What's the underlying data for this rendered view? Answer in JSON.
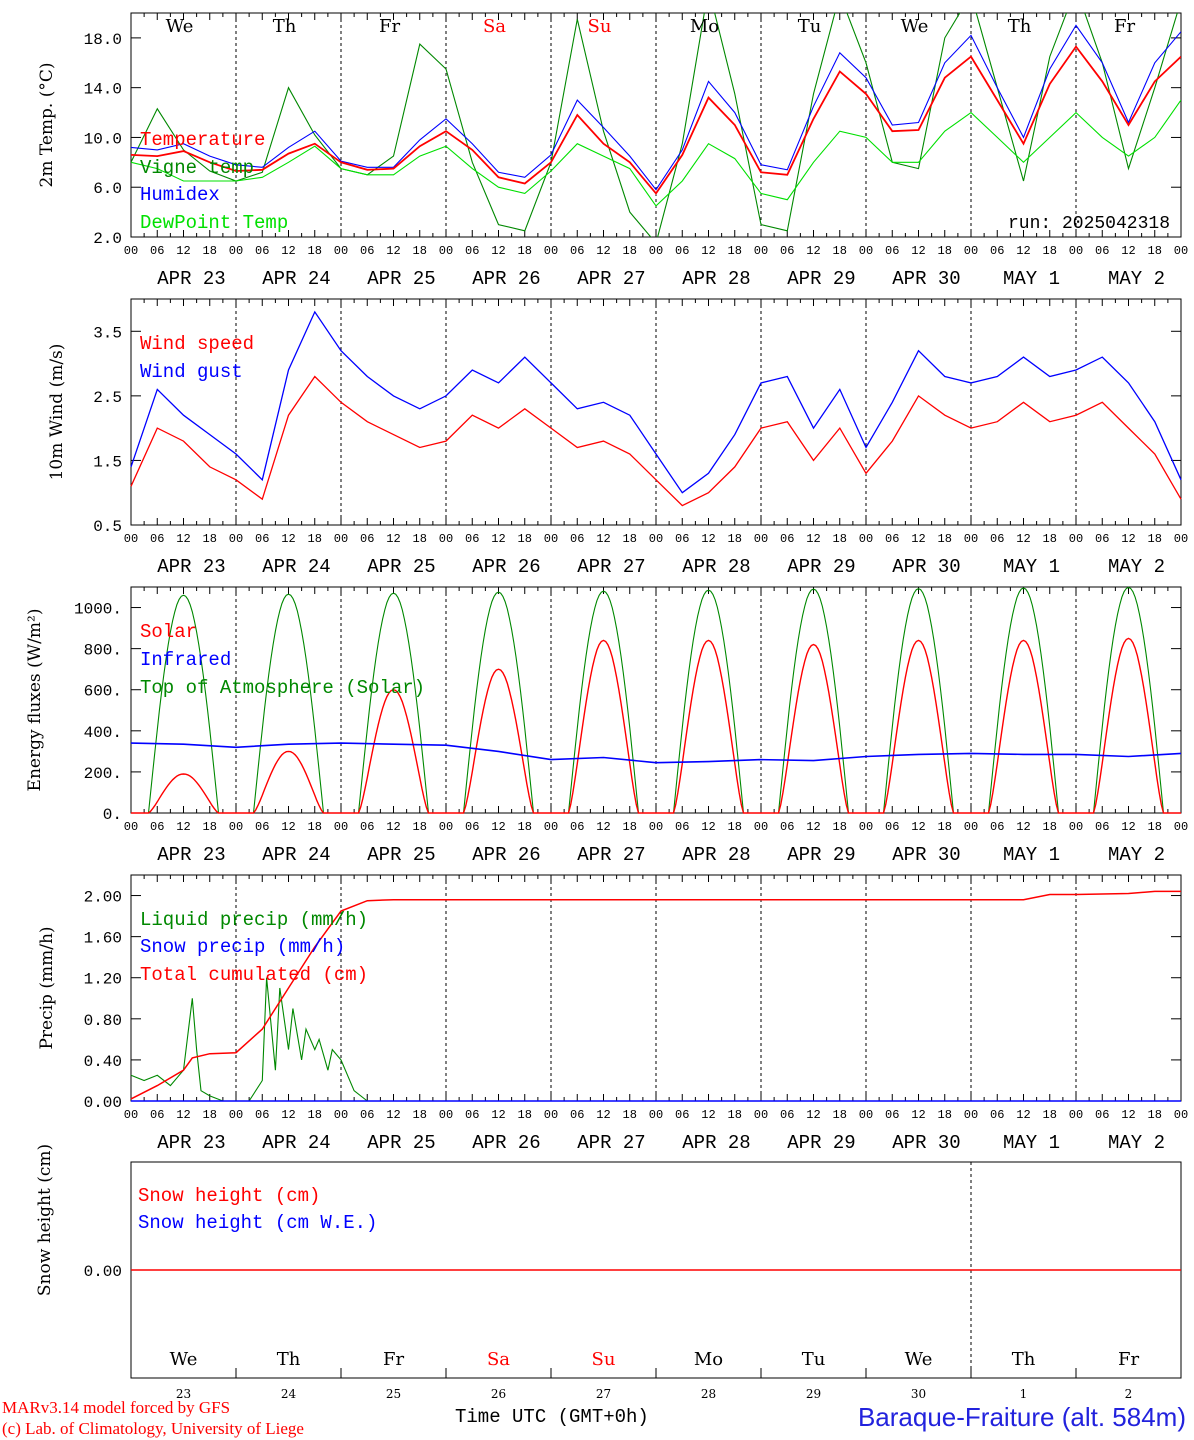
{
  "days_top": [
    {
      "label": "We",
      "color": "#000000"
    },
    {
      "label": "Th",
      "color": "#000000"
    },
    {
      "label": "Fr",
      "color": "#000000"
    },
    {
      "label": "Sa",
      "color": "#ff0000"
    },
    {
      "label": "Su",
      "color": "#ff0000"
    },
    {
      "label": "Mo",
      "color": "#000000"
    },
    {
      "label": "Tu",
      "color": "#000000"
    },
    {
      "label": "We",
      "color": "#000000"
    },
    {
      "label": "Th",
      "color": "#000000"
    },
    {
      "label": "Fr",
      "color": "#000000"
    }
  ],
  "date_labels": [
    "APR 23",
    "APR 24",
    "APR 25",
    "APR 26",
    "APR 27",
    "APR 28",
    "APR 29",
    "APR 30",
    "MAY  1",
    "MAY  2"
  ],
  "hour_ticks": [
    "00",
    "06",
    "12",
    "18"
  ],
  "day_numbers": [
    "23",
    "24",
    "25",
    "26",
    "27",
    "28",
    "29",
    "30",
    "1",
    "2"
  ],
  "colors": {
    "red": "#ff0000",
    "green": "#008800",
    "blue": "#0000ff",
    "lightgreen": "#00e000",
    "title_blue": "#2222dd"
  },
  "footer": {
    "model": "MARv3.14 model forced by GFS",
    "lab": "(c) Lab. of Climatology, University of Liege",
    "time_label": "Time UTC (GMT+0h)",
    "station": "Baraque-Fraiture (alt. 584m)"
  },
  "chart_data": [
    {
      "type": "line",
      "ylabel": "2m Temp. (°C)",
      "ylim": [
        2,
        20
      ],
      "yticks": [
        "2.0",
        "6.0",
        "10.0",
        "14.0",
        "18.0"
      ],
      "run_label": "run: 2025042318",
      "x_hours": [
        0,
        6,
        12,
        18,
        24,
        30,
        36,
        42,
        48,
        54,
        60,
        66,
        72,
        78,
        84,
        90,
        96,
        102,
        108,
        114,
        120,
        126,
        132,
        138,
        144,
        150,
        156,
        162,
        168,
        174,
        180,
        186,
        192,
        198,
        204,
        210,
        216,
        222,
        228,
        234,
        240
      ],
      "series": [
        {
          "name": "Temperature",
          "color": "#ff0000",
          "values": [
            8.6,
            8.5,
            8.9,
            8.0,
            7.3,
            7.4,
            8.7,
            9.5,
            8.0,
            7.4,
            7.5,
            9.3,
            10.5,
            9.0,
            6.8,
            6.3,
            8.0,
            11.8,
            9.5,
            8.0,
            5.5,
            8.6,
            13.2,
            11.0,
            7.2,
            7.0,
            11.5,
            15.3,
            13.5,
            10.5,
            10.6,
            14.8,
            16.5,
            13.0,
            9.5,
            14.3,
            17.3,
            14.5,
            11.0,
            14.5,
            16.5
          ]
        },
        {
          "name": "Vigne temp",
          "color": "#008800",
          "values": [
            8.0,
            12.3,
            9.0,
            7.3,
            6.5,
            7.2,
            14.0,
            10.2,
            7.5,
            7.0,
            8.5,
            17.5,
            15.5,
            8.0,
            3.0,
            2.5,
            8.0,
            19.5,
            10.5,
            4.0,
            1.5,
            9.5,
            22.0,
            13.5,
            3.0,
            2.5,
            13.5,
            21.5,
            16.0,
            8.0,
            7.5,
            18.0,
            21.5,
            14.0,
            6.5,
            16.5,
            22.0,
            16.0,
            7.5,
            14.0,
            21.0
          ]
        },
        {
          "name": "Humidex",
          "color": "#0000ff",
          "values": [
            9.2,
            9.0,
            9.5,
            8.5,
            7.8,
            7.6,
            9.2,
            10.5,
            8.1,
            7.6,
            7.6,
            9.8,
            11.5,
            9.5,
            7.2,
            6.8,
            8.6,
            13.0,
            10.8,
            8.5,
            5.8,
            9.0,
            14.5,
            12.0,
            7.8,
            7.4,
            12.5,
            16.8,
            14.8,
            11.0,
            11.2,
            16.0,
            18.2,
            14.0,
            10.0,
            15.5,
            19.0,
            16.0,
            11.2,
            16.0,
            18.5
          ]
        },
        {
          "name": "DewPoint Temp",
          "color": "#00e000",
          "values": [
            8.0,
            7.5,
            6.5,
            6.5,
            6.5,
            6.8,
            8.0,
            9.3,
            7.5,
            7.0,
            7.0,
            8.5,
            9.3,
            7.5,
            6.0,
            5.5,
            7.3,
            9.5,
            8.5,
            7.5,
            4.5,
            6.5,
            9.5,
            8.3,
            5.5,
            5.0,
            8.0,
            10.5,
            10.0,
            8.0,
            8.0,
            10.5,
            12.0,
            10.0,
            8.0,
            10.0,
            12.0,
            10.0,
            8.5,
            10.0,
            13.0
          ]
        }
      ]
    },
    {
      "type": "line",
      "ylabel": "10m Wind (m/s)",
      "ylim": [
        0.5,
        4.0
      ],
      "yticks": [
        "0.5",
        "1.5",
        "2.5",
        "3.5"
      ],
      "x_hours": [
        0,
        6,
        12,
        18,
        24,
        30,
        36,
        42,
        48,
        54,
        60,
        66,
        72,
        78,
        84,
        90,
        96,
        102,
        108,
        114,
        120,
        126,
        132,
        138,
        144,
        150,
        156,
        162,
        168,
        174,
        180,
        186,
        192,
        198,
        204,
        210,
        216,
        222,
        228,
        234,
        240
      ],
      "series": [
        {
          "name": "Wind speed",
          "color": "#ff0000",
          "values": [
            1.1,
            2.0,
            1.8,
            1.4,
            1.2,
            0.9,
            2.2,
            2.8,
            2.4,
            2.1,
            1.9,
            1.7,
            1.8,
            2.2,
            2.0,
            2.3,
            2.0,
            1.7,
            1.8,
            1.6,
            1.2,
            0.8,
            1.0,
            1.4,
            2.0,
            2.1,
            1.5,
            2.0,
            1.3,
            1.8,
            2.5,
            2.2,
            2.0,
            2.1,
            2.4,
            2.1,
            2.2,
            2.4,
            2.0,
            1.6,
            0.9
          ]
        },
        {
          "name": "Wind gust",
          "color": "#0000ff",
          "values": [
            1.4,
            2.6,
            2.2,
            1.9,
            1.6,
            1.2,
            2.9,
            3.8,
            3.2,
            2.8,
            2.5,
            2.3,
            2.5,
            2.9,
            2.7,
            3.1,
            2.7,
            2.3,
            2.4,
            2.2,
            1.6,
            1.0,
            1.3,
            1.9,
            2.7,
            2.8,
            2.0,
            2.6,
            1.7,
            2.4,
            3.2,
            2.8,
            2.7,
            2.8,
            3.1,
            2.8,
            2.9,
            3.1,
            2.7,
            2.1,
            1.2
          ]
        }
      ]
    },
    {
      "type": "line",
      "ylabel": "Energy fluxes (W/m²)",
      "ylim": [
        0,
        1100
      ],
      "yticks": [
        "0.",
        "200.",
        "400.",
        "600.",
        "800.",
        "1000."
      ],
      "days": 10,
      "series": [
        {
          "name": "Solar",
          "color": "#ff0000",
          "daily_peaks": [
            190,
            300,
            600,
            700,
            840,
            840,
            820,
            840,
            840,
            850
          ]
        },
        {
          "name": "Infrared",
          "color": "#0000ff",
          "x_hours": [
            0,
            12,
            24,
            36,
            48,
            60,
            72,
            84,
            96,
            108,
            120,
            132,
            144,
            156,
            168,
            180,
            192,
            204,
            216,
            228,
            240
          ],
          "values": [
            340,
            335,
            320,
            335,
            340,
            335,
            330,
            300,
            260,
            270,
            245,
            250,
            260,
            255,
            275,
            285,
            290,
            285,
            285,
            275,
            290
          ]
        },
        {
          "name": "Top of Atmosphere (Solar)",
          "color": "#008800",
          "daily_peaks": [
            1060,
            1065,
            1070,
            1075,
            1080,
            1085,
            1090,
            1092,
            1095,
            1098
          ]
        }
      ]
    },
    {
      "type": "line",
      "ylabel": "Precip (mm/h)",
      "ylim": [
        0,
        2.2
      ],
      "yticks": [
        "0.00",
        "0.40",
        "0.80",
        "1.20",
        "1.60",
        "2.00"
      ],
      "series": [
        {
          "name": "Liquid precip (mm/h)",
          "color": "#008800",
          "x_hours": [
            0,
            3,
            6,
            9,
            12,
            14,
            15,
            16,
            18,
            21,
            24,
            27,
            30,
            31,
            33,
            34,
            36,
            37,
            39,
            40,
            42,
            43,
            45,
            46,
            48,
            51,
            54,
            57,
            60,
            240
          ],
          "values": [
            0.25,
            0.2,
            0.25,
            0.15,
            0.3,
            1.0,
            0.5,
            0.1,
            0.05,
            0.0,
            0.0,
            0.0,
            0.2,
            1.2,
            0.3,
            1.1,
            0.5,
            0.9,
            0.4,
            0.7,
            0.5,
            0.6,
            0.3,
            0.5,
            0.4,
            0.1,
            0.0,
            0.0,
            0.0,
            0.0
          ]
        },
        {
          "name": "Snow precip (mm/h)",
          "color": "#0000ff",
          "values_constant": 0.0
        },
        {
          "name": "Total cumulated (cm)",
          "color": "#ff0000",
          "x_hours": [
            0,
            6,
            12,
            14,
            18,
            24,
            30,
            36,
            42,
            48,
            54,
            60,
            72,
            96,
            120,
            144,
            168,
            192,
            204,
            210,
            216,
            228,
            234,
            240
          ],
          "values": [
            0.02,
            0.15,
            0.3,
            0.42,
            0.46,
            0.47,
            0.7,
            1.1,
            1.5,
            1.85,
            1.95,
            1.96,
            1.96,
            1.96,
            1.96,
            1.96,
            1.96,
            1.96,
            1.96,
            2.01,
            2.01,
            2.02,
            2.04,
            2.04
          ]
        }
      ]
    },
    {
      "type": "line",
      "ylabel": "Snow height (cm)",
      "yticks": [
        "0.00"
      ],
      "series": [
        {
          "name": "Snow height (cm)",
          "color": "#ff0000",
          "values_constant": 0.0
        },
        {
          "name": "Snow height (cm W.E.)",
          "color": "#0000ff",
          "values_constant": 0.0
        }
      ]
    }
  ]
}
